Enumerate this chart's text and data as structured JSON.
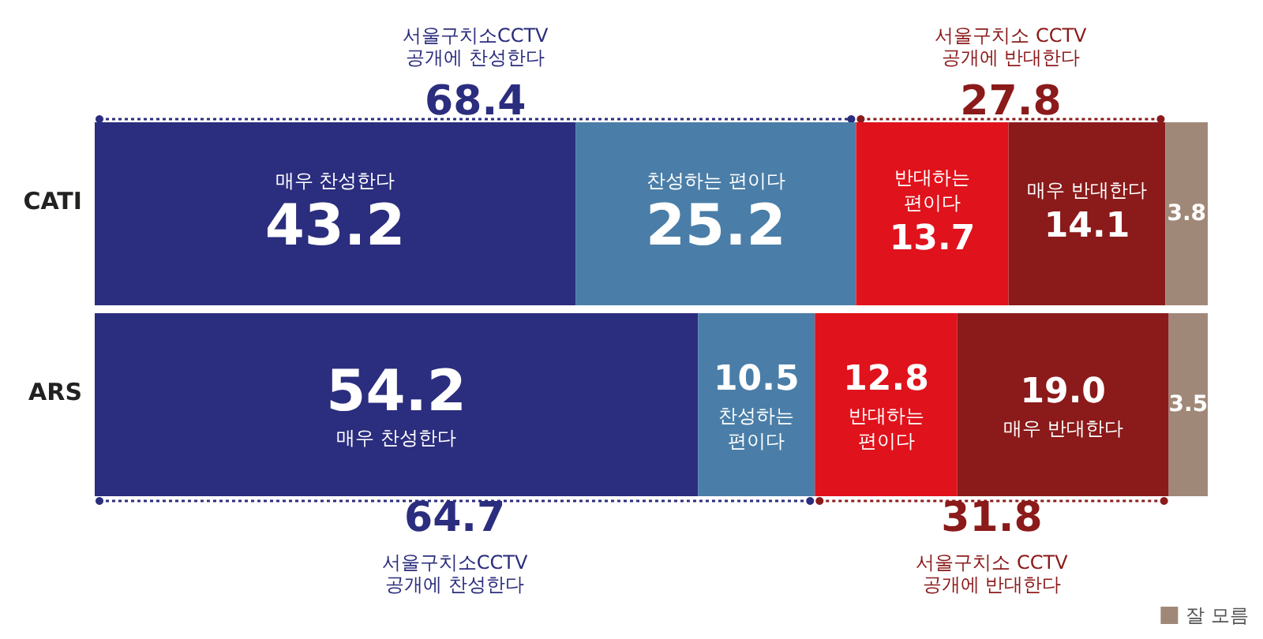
{
  "chart_data": {
    "type": "bar",
    "orientation": "horizontal",
    "stacked": true,
    "categories": [
      "CATI",
      "ARS"
    ],
    "xlim": [
      0,
      100
    ],
    "tick_labels": "y",
    "grid": false,
    "data_labels": true,
    "legend": "bottom right",
    "series": [
      {
        "name": "매우 찬성한다",
        "color": "#2b2d7e",
        "values": [
          43.2,
          54.2
        ],
        "value_labels": [
          "43.2",
          "54.2"
        ]
      },
      {
        "name": "찬성하는 편이다",
        "color": "#4a7ea8",
        "values": [
          25.2,
          10.5
        ],
        "value_labels": [
          "25.2",
          "10.5"
        ]
      },
      {
        "name": "반대하는 편이다",
        "color": "#e0121c",
        "values": [
          13.7,
          12.8
        ],
        "value_labels": [
          "13.7",
          "12.8"
        ]
      },
      {
        "name": "매우 반대한다",
        "color": "#8b1a1a",
        "values": [
          14.1,
          19.0
        ],
        "value_labels": [
          "14.1",
          "19.0"
        ]
      },
      {
        "name": "잘 모름",
        "color": "#a08878",
        "values": [
          3.8,
          3.5
        ],
        "value_labels": [
          "3.8",
          "3.5"
        ]
      }
    ],
    "annotations": [
      "서울구치소CCTV\n공개에 찬성한다",
      "68.4",
      "서울구치소 CCTV\n공개에 반대한다",
      "27.8",
      "64.7",
      "서울구치소CCTV\n공개에 찬성한다",
      "31.8",
      "서울구치소 CCTV\n공개에 반대한다"
    ]
  }
}
